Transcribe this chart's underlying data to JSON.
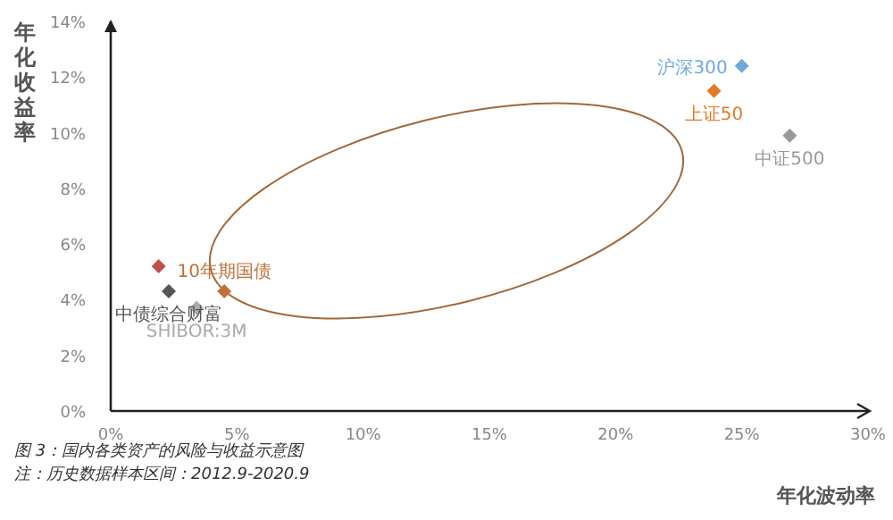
{
  "chart_data": {
    "type": "scatter",
    "xlabel": "年化波动率",
    "ylabel": "年化收益率",
    "xlim": [
      0,
      30
    ],
    "ylim": [
      0,
      14
    ],
    "xticks": [
      {
        "value": 0,
        "label": "0%"
      },
      {
        "value": 5,
        "label": "5%"
      },
      {
        "value": 10,
        "label": "10%"
      },
      {
        "value": 15,
        "label": "15%"
      },
      {
        "value": 20,
        "label": "20%"
      },
      {
        "value": 25,
        "label": "25%"
      },
      {
        "value": 30,
        "label": "30%"
      }
    ],
    "yticks": [
      {
        "value": 0,
        "label": "0%"
      },
      {
        "value": 2,
        "label": "2%"
      },
      {
        "value": 4,
        "label": "4%"
      },
      {
        "value": 6,
        "label": "6%"
      },
      {
        "value": 8,
        "label": "8%"
      },
      {
        "value": 10,
        "label": "10%"
      },
      {
        "value": 12,
        "label": "12%"
      },
      {
        "value": 14,
        "label": "14%"
      }
    ],
    "marker": "diamond",
    "grid": false,
    "legend": false,
    "series": [
      {
        "name": "沪深300",
        "color": "#6fa8dc",
        "x": [
          25.0
        ],
        "values": [
          12.4
        ]
      },
      {
        "name": "上证50",
        "color": "#e07b2a",
        "x": [
          23.9
        ],
        "values": [
          11.5
        ]
      },
      {
        "name": "中证500",
        "color": "#999999",
        "x": [
          26.9
        ],
        "values": [
          9.9
        ]
      },
      {
        "color": "#c0504d",
        "x": [
          1.9
        ],
        "values": [
          5.2
        ]
      },
      {
        "name": "中债综合财富",
        "color": "#555555",
        "x": [
          2.3
        ],
        "values": [
          4.3
        ]
      },
      {
        "name": "10年期国债",
        "color": "#c0703a",
        "x": [
          4.5
        ],
        "values": [
          4.3
        ]
      },
      {
        "name": "SHIBOR:3M",
        "color": "#aaaaaa",
        "x": [
          3.4
        ],
        "values": [
          3.7
        ]
      }
    ],
    "annotations": [
      "图 3：国内各类资产的风险与收益示意图",
      "注：历史数据样本区间：2012.9-2020.9"
    ]
  }
}
